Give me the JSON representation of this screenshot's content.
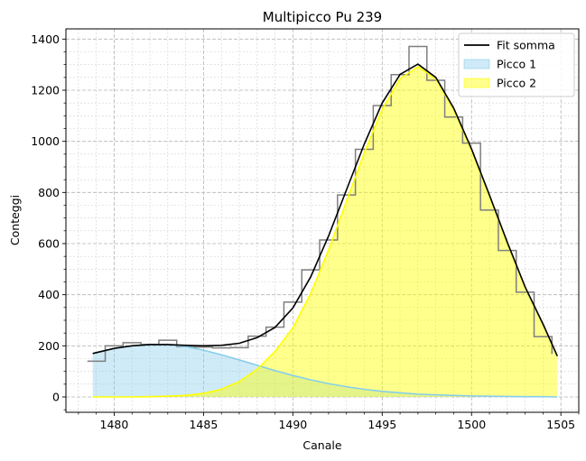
{
  "chart_data": {
    "type": "line",
    "title": "Multipicco Pu 239",
    "xlabel": "Canale",
    "ylabel": "Conteggi",
    "xlim": [
      1477.3,
      1506.0
    ],
    "ylim": [
      -60,
      1440
    ],
    "xticks": [
      1480,
      1485,
      1490,
      1495,
      1500,
      1505
    ],
    "yticks": [
      0,
      200,
      400,
      600,
      800,
      1000,
      1200,
      1400
    ],
    "x_minor_step": 1,
    "y_minor_step": 50,
    "grid": true,
    "legend_position": "top-right",
    "histogram": {
      "color": "#7f7f7f",
      "edges": [
        1478.5,
        1479.5,
        1480.5,
        1481.5,
        1482.5,
        1483.5,
        1484.5,
        1485.5,
        1486.5,
        1487.5,
        1488.5,
        1489.5,
        1490.5,
        1491.5,
        1492.5,
        1493.5,
        1494.5,
        1495.5,
        1496.5,
        1497.5,
        1498.5,
        1499.5,
        1500.5,
        1501.5,
        1502.5,
        1503.5,
        1504.5
      ],
      "counts": [
        140,
        200,
        212,
        205,
        222,
        197,
        195,
        192,
        193,
        238,
        273,
        371,
        497,
        614,
        790,
        969,
        1140,
        1261,
        1371,
        1239,
        1095,
        993,
        731,
        573,
        410,
        236,
        168
      ]
    },
    "series": [
      {
        "name": "Fit somma",
        "style": "line",
        "color": "#000000",
        "x": [
          1478.8,
          1480,
          1481,
          1482,
          1483,
          1484,
          1485,
          1486,
          1487,
          1488,
          1489,
          1490,
          1491,
          1492,
          1493,
          1494,
          1495,
          1496,
          1497,
          1498,
          1499,
          1500,
          1501,
          1502,
          1503,
          1504,
          1504.8
        ],
        "y": [
          170,
          190,
          200,
          205,
          205,
          202,
          200,
          202,
          210,
          232,
          272,
          348,
          470,
          630,
          810,
          990,
          1150,
          1262,
          1302,
          1250,
          1130,
          970,
          790,
          605,
          430,
          285,
          160
        ]
      },
      {
        "name": "Picco 1",
        "style": "area",
        "color": "#87ceeb",
        "fill": "#87ceeb",
        "fill_opacity": 0.4,
        "x": [
          1478.8,
          1480,
          1481,
          1482,
          1483,
          1484,
          1485,
          1486,
          1487,
          1488,
          1489,
          1490,
          1491,
          1492,
          1493,
          1494,
          1495,
          1496,
          1497,
          1498,
          1499,
          1500,
          1501,
          1502,
          1503,
          1504,
          1504.8
        ],
        "y": [
          170,
          190,
          200,
          205,
          205,
          197,
          183,
          165,
          145,
          124,
          103,
          84,
          67,
          52,
          40,
          30,
          22,
          16,
          11,
          8,
          6,
          4,
          3,
          2,
          1,
          1,
          0
        ]
      },
      {
        "name": "Picco 2",
        "style": "area",
        "color": "#ffff00",
        "fill": "#ffff00",
        "fill_opacity": 0.45,
        "x": [
          1478.8,
          1480,
          1481,
          1482,
          1483,
          1484,
          1485,
          1486,
          1487,
          1488,
          1489,
          1490,
          1491,
          1492,
          1493,
          1494,
          1495,
          1496,
          1497,
          1498,
          1499,
          1500,
          1501,
          1502,
          1503,
          1504,
          1504.8
        ],
        "y": [
          0,
          0,
          0,
          1,
          3,
          6,
          14,
          30,
          60,
          108,
          178,
          270,
          405,
          575,
          765,
          955,
          1125,
          1245,
          1292,
          1245,
          1124,
          966,
          786,
          602,
          429,
          283,
          160
        ]
      }
    ]
  }
}
